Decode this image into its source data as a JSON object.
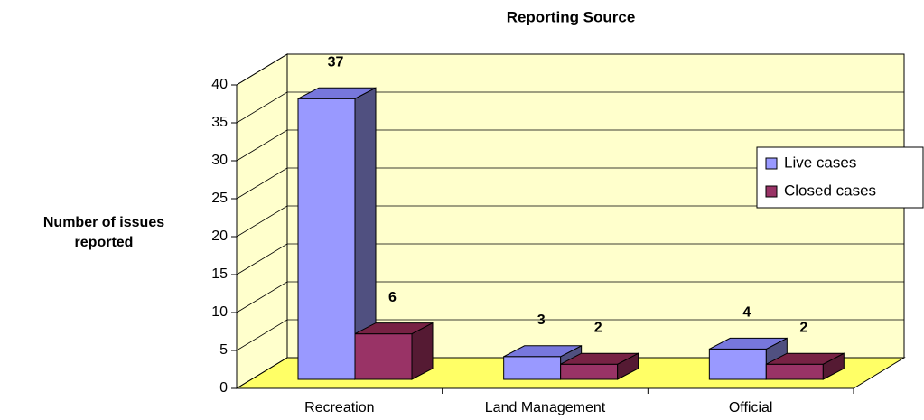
{
  "chart_data": {
    "type": "bar3d",
    "title": "Reporting Source",
    "y_label": "Number of issues reported",
    "categories": [
      "Recreation",
      "Land Management",
      "Official"
    ],
    "series": [
      {
        "name": "Live cases",
        "color": "#9999ff",
        "values": [
          37,
          3,
          4
        ]
      },
      {
        "name": "Closed cases",
        "color": "#993366",
        "values": [
          6,
          2,
          2
        ]
      }
    ],
    "ylim": [
      0,
      40
    ],
    "yticks": [
      0,
      5,
      10,
      15,
      20,
      25,
      30,
      35,
      40
    ],
    "grid": true,
    "legend": "right"
  }
}
